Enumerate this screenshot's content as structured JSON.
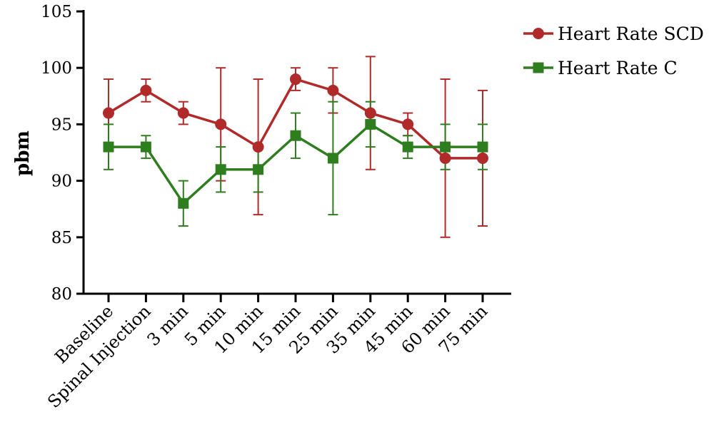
{
  "chart_data": {
    "type": "line",
    "title": "",
    "xlabel": "",
    "ylabel": "pbm",
    "ylim": [
      80,
      105
    ],
    "yticks": [
      80,
      85,
      90,
      95,
      100,
      105
    ],
    "grid": false,
    "legend_position": "top-right",
    "categories": [
      "Baseline",
      "Spinal Injection",
      "3 min",
      "5 min",
      "10 min",
      "15 min",
      "25 min",
      "35 min",
      "45 min",
      "60 min",
      "75 min"
    ],
    "series": [
      {
        "name": "Heart Rate SCD",
        "color": "#b02a2a",
        "marker": "circle",
        "values": [
          96,
          98,
          96,
          95,
          93,
          99,
          98,
          96,
          95,
          92,
          92
        ],
        "error_low": [
          93,
          97,
          95,
          90,
          87,
          98,
          96,
          91,
          94,
          85,
          86
        ],
        "error_high": [
          99,
          99,
          97,
          100,
          99,
          100,
          100,
          101,
          96,
          99,
          98
        ]
      },
      {
        "name": "Heart Rate C",
        "color": "#2e7d1e",
        "marker": "square",
        "values": [
          93,
          93,
          88,
          91,
          91,
          94,
          92,
          95,
          93,
          93,
          93
        ],
        "error_low": [
          91,
          92,
          86,
          89,
          89,
          92,
          87,
          93,
          92,
          91,
          91
        ],
        "error_high": [
          95,
          94,
          90,
          93,
          93,
          96,
          97,
          97,
          94,
          95,
          95
        ]
      }
    ]
  }
}
